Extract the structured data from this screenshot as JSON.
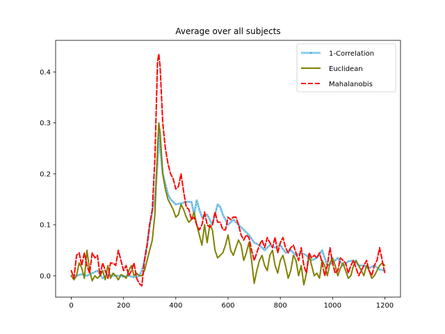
{
  "chart_data": {
    "type": "line",
    "title": "Average over all subjects",
    "xlabel": "",
    "ylabel": "",
    "xlim": [
      -60,
      1260
    ],
    "ylim": [
      -0.042,
      0.462
    ],
    "xticks": [
      0,
      200,
      400,
      600,
      800,
      1000,
      1200
    ],
    "xtick_labels": [
      "0",
      "200",
      "400",
      "600",
      "800",
      "1000",
      "1200"
    ],
    "yticks": [
      0.0,
      0.1,
      0.2,
      0.3,
      0.4
    ],
    "ytick_labels": [
      "0.0",
      "0.1",
      "0.2",
      "0.3",
      "0.4"
    ],
    "grid": false,
    "legend_position": "top-right",
    "series": [
      {
        "name": "1-Correlation",
        "color": "#87ceeb",
        "style": "solid-dotted-markers",
        "x": [
          0,
          20,
          40,
          60,
          80,
          100,
          120,
          140,
          160,
          180,
          200,
          220,
          240,
          260,
          270,
          280,
          290,
          300,
          310,
          320,
          330,
          335,
          340,
          350,
          360,
          370,
          380,
          390,
          400,
          420,
          440,
          460,
          470,
          480,
          490,
          500,
          520,
          540,
          560,
          570,
          580,
          600,
          620,
          640,
          660,
          680,
          700,
          720,
          740,
          760,
          780,
          800,
          820,
          840,
          860,
          880,
          900,
          920,
          940,
          960,
          980,
          1000,
          1020,
          1040,
          1060,
          1080,
          1100,
          1120,
          1140,
          1160,
          1180,
          1200
        ],
        "y": [
          0.0,
          0.0,
          0.003,
          0.0,
          0.005,
          0.01,
          -0.005,
          0.003,
          0.0,
          0.0,
          -0.002,
          0.0,
          -0.003,
          0.0,
          0.01,
          0.03,
          0.06,
          0.1,
          0.125,
          0.155,
          0.22,
          0.28,
          0.25,
          0.2,
          0.18,
          0.16,
          0.15,
          0.145,
          0.14,
          0.142,
          0.145,
          0.145,
          0.12,
          0.148,
          0.13,
          0.115,
          0.12,
          0.1,
          0.14,
          0.135,
          0.12,
          0.1,
          0.11,
          0.1,
          0.09,
          0.08,
          0.065,
          0.06,
          0.05,
          0.06,
          0.055,
          0.06,
          0.045,
          0.05,
          0.04,
          0.045,
          0.04,
          0.03,
          0.035,
          0.05,
          0.02,
          0.025,
          0.035,
          0.02,
          0.028,
          0.03,
          0.02,
          0.02,
          0.015,
          0.02,
          0.012,
          0.01
        ]
      },
      {
        "name": "Euclidean",
        "color": "#808000",
        "style": "solid",
        "x": [
          0,
          10,
          20,
          30,
          40,
          50,
          60,
          70,
          80,
          90,
          100,
          110,
          120,
          130,
          140,
          150,
          160,
          170,
          180,
          190,
          200,
          210,
          220,
          230,
          240,
          250,
          260,
          270,
          280,
          290,
          300,
          310,
          320,
          330,
          335,
          340,
          350,
          360,
          370,
          380,
          390,
          400,
          410,
          420,
          430,
          440,
          450,
          460,
          470,
          480,
          490,
          500,
          510,
          520,
          530,
          540,
          550,
          560,
          570,
          580,
          590,
          600,
          610,
          620,
          630,
          640,
          650,
          660,
          670,
          680,
          690,
          700,
          710,
          720,
          730,
          740,
          750,
          760,
          770,
          780,
          790,
          800,
          810,
          820,
          830,
          840,
          850,
          860,
          870,
          880,
          890,
          900,
          910,
          920,
          930,
          940,
          950,
          960,
          970,
          980,
          990,
          1000,
          1010,
          1020,
          1030,
          1040,
          1050,
          1060,
          1070,
          1080,
          1090,
          1100,
          1110,
          1120,
          1130,
          1140,
          1150,
          1160,
          1170,
          1180,
          1190,
          1200
        ],
        "y": [
          0.0,
          -0.008,
          0.0,
          0.025,
          0.015,
          -0.005,
          0.05,
          0.01,
          -0.01,
          0.0,
          -0.005,
          0.0,
          0.01,
          -0.008,
          0.02,
          -0.005,
          0.005,
          0.0,
          -0.008,
          0.002,
          0.0,
          -0.005,
          0.01,
          0.02,
          0.0,
          0.005,
          0.0,
          0.0,
          0.01,
          0.03,
          0.05,
          0.07,
          0.12,
          0.25,
          0.3,
          0.28,
          0.2,
          0.17,
          0.15,
          0.14,
          0.13,
          0.115,
          0.12,
          0.14,
          0.13,
          0.115,
          0.105,
          0.11,
          0.125,
          0.1,
          0.08,
          0.06,
          0.1,
          0.065,
          0.1,
          0.09,
          0.05,
          0.035,
          0.04,
          0.045,
          0.06,
          0.08,
          0.05,
          0.04,
          0.055,
          0.07,
          0.06,
          0.03,
          0.045,
          0.065,
          0.03,
          -0.015,
          0.01,
          0.03,
          0.04,
          0.02,
          0.01,
          0.04,
          0.05,
          0.02,
          0.005,
          0.03,
          0.04,
          0.02,
          -0.005,
          0.01,
          0.04,
          0.03,
          0.0,
          0.02,
          -0.018,
          0.005,
          0.04,
          0.02,
          0.0,
          0.005,
          -0.005,
          0.03,
          0.02,
          0.0,
          0.025,
          0.035,
          0.02,
          0.0,
          0.015,
          0.025,
          0.01,
          -0.005,
          0.0,
          0.02,
          0.03,
          0.02,
          0.01,
          0.0,
          0.02,
          0.01,
          -0.005,
          0.0,
          0.01,
          0.02,
          0.025,
          0.02
        ]
      },
      {
        "name": "Mahalanobis",
        "color": "#ff0000",
        "style": "dashed",
        "x": [
          0,
          10,
          20,
          30,
          40,
          50,
          60,
          70,
          80,
          90,
          100,
          110,
          120,
          130,
          140,
          150,
          160,
          170,
          180,
          190,
          200,
          210,
          220,
          230,
          240,
          250,
          260,
          270,
          280,
          290,
          300,
          310,
          320,
          330,
          335,
          340,
          350,
          360,
          370,
          380,
          390,
          400,
          410,
          420,
          430,
          440,
          450,
          460,
          470,
          480,
          490,
          500,
          510,
          520,
          530,
          540,
          550,
          560,
          570,
          580,
          590,
          600,
          610,
          620,
          630,
          640,
          650,
          660,
          670,
          680,
          690,
          700,
          710,
          720,
          730,
          740,
          750,
          760,
          770,
          780,
          790,
          800,
          810,
          820,
          830,
          840,
          850,
          860,
          870,
          880,
          890,
          900,
          910,
          920,
          930,
          940,
          950,
          960,
          970,
          980,
          990,
          1000,
          1010,
          1020,
          1030,
          1040,
          1050,
          1060,
          1070,
          1080,
          1090,
          1100,
          1110,
          1120,
          1130,
          1140,
          1150,
          1160,
          1170,
          1180,
          1190,
          1200
        ],
        "y": [
          0.01,
          -0.005,
          0.04,
          0.045,
          0.02,
          0.045,
          0.02,
          0.005,
          0.045,
          0.035,
          0.04,
          0.0,
          0.025,
          0.01,
          -0.005,
          0.025,
          0.025,
          0.02,
          0.05,
          0.03,
          0.01,
          0.02,
          0.0,
          0.01,
          0.025,
          -0.005,
          -0.015,
          -0.02,
          0.03,
          0.06,
          0.1,
          0.13,
          0.23,
          0.42,
          0.435,
          0.41,
          0.3,
          0.25,
          0.22,
          0.2,
          0.19,
          0.17,
          0.175,
          0.2,
          0.165,
          0.135,
          0.13,
          0.11,
          0.115,
          0.1,
          0.09,
          0.1,
          0.125,
          0.1,
          0.095,
          0.1,
          0.125,
          0.105,
          0.105,
          0.09,
          0.09,
          0.115,
          0.11,
          0.115,
          0.115,
          0.1,
          0.08,
          0.07,
          0.08,
          0.075,
          0.05,
          0.03,
          0.045,
          0.06,
          0.07,
          0.055,
          0.075,
          0.065,
          0.055,
          0.075,
          0.045,
          0.065,
          0.075,
          0.055,
          0.045,
          0.055,
          0.06,
          0.045,
          0.03,
          0.055,
          0.02,
          0.005,
          0.045,
          0.035,
          0.04,
          0.035,
          0.045,
          0.025,
          0.0,
          0.02,
          0.055,
          0.025,
          0.005,
          0.01,
          0.035,
          0.03,
          0.025,
          0.005,
          0.02,
          0.03,
          0.015,
          0.0,
          0.01,
          0.02,
          0.03,
          0.01,
          0.0,
          0.02,
          0.03,
          0.055,
          0.03,
          0.005
        ]
      }
    ]
  }
}
